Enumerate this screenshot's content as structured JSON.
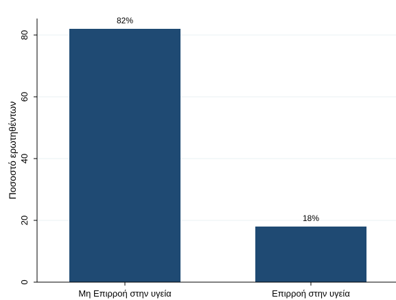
{
  "chart_data": {
    "type": "bar",
    "categories": [
      "Μη Επιρροή στην υγεία",
      "Επιρροή στην υγεία"
    ],
    "values": [
      82,
      18
    ],
    "data_labels": [
      "82%",
      "18%"
    ],
    "title": "",
    "xlabel": "",
    "ylabel": "Ποσοστό ερωτηθέντων",
    "ylim": [
      0,
      85
    ],
    "yticks": [
      0,
      20,
      40,
      60,
      80
    ],
    "grid": true,
    "legend": "none",
    "colors": {
      "bar": "#1f4a73",
      "grid": "#eaf2f3",
      "axis": "#000000"
    }
  }
}
